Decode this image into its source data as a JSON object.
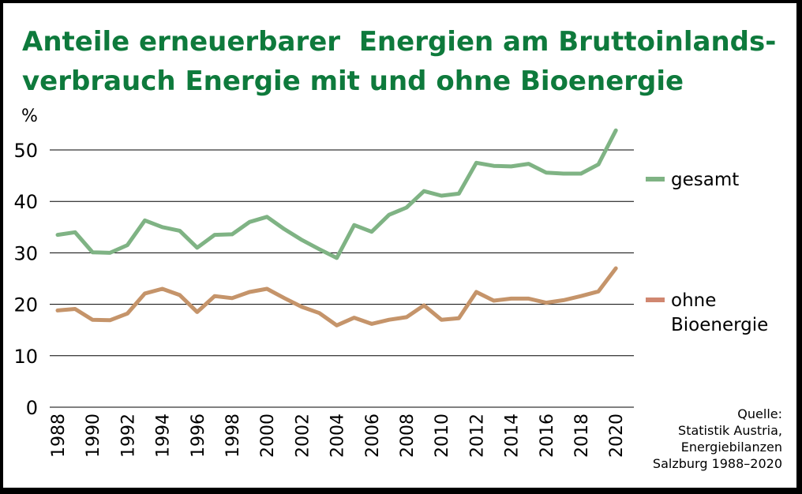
{
  "title_lines": [
    "Anteile erneuerbarer  Energien am Bruttoinlands-",
    "verbrauch Energie mit und ohne Bioenergie"
  ],
  "source_lines": [
    "Quelle:",
    "Statistik Austria,",
    "Energiebilanzen",
    "Salzburg 1988–2020"
  ],
  "colors": {
    "title": "#0e7a3c",
    "gesamt": "#7fb384",
    "ohne_bioenergie": "#c5946a",
    "legend_ohne_marker": "#d08770",
    "grid": "#000000"
  },
  "chart_data": {
    "type": "line",
    "ylabel": "%",
    "ylim": [
      0,
      55
    ],
    "yticks": [
      "0",
      "10",
      "20",
      "30",
      "40",
      "50"
    ],
    "grid": "horizontal",
    "legend_position": "right",
    "xtick_labels": [
      "1988",
      "1990",
      "1992",
      "1994",
      "1996",
      "1998",
      "2000",
      "2002",
      "2004",
      "2006",
      "2008",
      "2010",
      "2012",
      "2014",
      "2016",
      "2018",
      "2020"
    ],
    "x": [
      1988,
      1989,
      1990,
      1991,
      1992,
      1993,
      1994,
      1995,
      1996,
      1997,
      1998,
      1999,
      2000,
      2001,
      2002,
      2003,
      2004,
      2005,
      2006,
      2007,
      2008,
      2009,
      2010,
      2011,
      2012,
      2013,
      2014,
      2015,
      2016,
      2017,
      2018,
      2019,
      2020
    ],
    "series": [
      {
        "name": "gesamt",
        "legend_lines": [
          "gesamt"
        ],
        "values": [
          33.5,
          34.0,
          30.1,
          30.0,
          31.5,
          36.3,
          35.0,
          34.3,
          31.0,
          33.5,
          33.6,
          36.0,
          37.0,
          34.6,
          32.5,
          30.7,
          29.0,
          35.4,
          34.1,
          37.4,
          38.8,
          42.0,
          41.1,
          41.5,
          47.5,
          46.9,
          46.8,
          47.3,
          45.6,
          45.4,
          45.4,
          47.2,
          53.8
        ]
      },
      {
        "name": "ohne Bioenergie",
        "legend_lines": [
          "ohne",
          "Bioenergie"
        ],
        "values": [
          18.8,
          19.1,
          17.0,
          16.9,
          18.2,
          22.1,
          23.0,
          21.8,
          18.5,
          21.6,
          21.2,
          22.4,
          23.0,
          21.2,
          19.5,
          18.3,
          15.9,
          17.4,
          16.2,
          17.0,
          17.5,
          19.8,
          17.0,
          17.3,
          22.4,
          20.7,
          21.1,
          21.1,
          20.3,
          20.8,
          21.6,
          22.5,
          27.0
        ]
      }
    ]
  }
}
